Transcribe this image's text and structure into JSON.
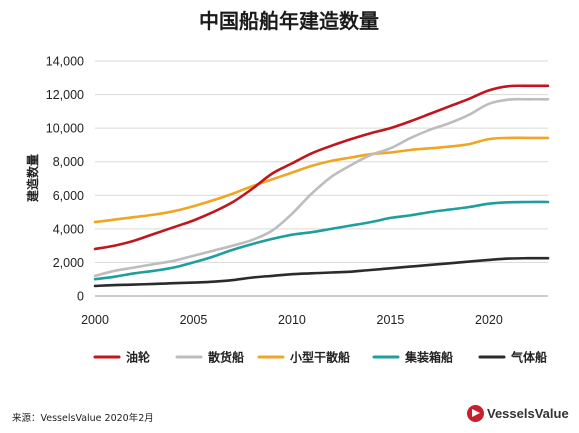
{
  "chart_data": {
    "type": "line",
    "title": "中国船舶年建造数量",
    "xlabel": "",
    "ylabel": "建造数量",
    "xlim": [
      2000,
      2023
    ],
    "ylim": [
      0,
      14000
    ],
    "xticks": [
      2000,
      2005,
      2010,
      2015,
      2020
    ],
    "yticks": [
      "0",
      "2,000",
      "4,000",
      "6,000",
      "8,000",
      "10,000",
      "12,000",
      "14,000"
    ],
    "ytick_values": [
      0,
      2000,
      4000,
      6000,
      8000,
      10000,
      12000,
      14000
    ],
    "grid": "horizontal",
    "legend_position": "bottom",
    "x": [
      2000,
      2001,
      2002,
      2003,
      2004,
      2005,
      2006,
      2007,
      2008,
      2009,
      2010,
      2011,
      2012,
      2013,
      2014,
      2015,
      2016,
      2017,
      2018,
      2019,
      2020,
      2021,
      2022,
      2023
    ],
    "series": [
      {
        "name": "油轮",
        "color": "#c0161f",
        "values": [
          2800,
          3000,
          3300,
          3700,
          4100,
          4500,
          5000,
          5600,
          6400,
          7300,
          7900,
          8500,
          8950,
          9350,
          9700,
          10000,
          10400,
          10850,
          11300,
          11750,
          12250,
          12500,
          12520,
          12520
        ]
      },
      {
        "name": "散货船",
        "color": "#bdbdbd",
        "values": [
          1200,
          1500,
          1700,
          1900,
          2100,
          2400,
          2700,
          3000,
          3350,
          3900,
          4900,
          6100,
          7100,
          7800,
          8400,
          8800,
          9400,
          9900,
          10300,
          10800,
          11450,
          11700,
          11720,
          11720
        ]
      },
      {
        "name": "小型干散船",
        "color": "#f0a623",
        "values": [
          4400,
          4550,
          4700,
          4850,
          5050,
          5350,
          5700,
          6100,
          6550,
          6950,
          7350,
          7750,
          8050,
          8250,
          8450,
          8550,
          8700,
          8800,
          8900,
          9050,
          9350,
          9420,
          9420,
          9420
        ]
      },
      {
        "name": "集装箱船",
        "color": "#1f9e9e",
        "values": [
          1000,
          1150,
          1350,
          1500,
          1700,
          2000,
          2350,
          2750,
          3100,
          3400,
          3650,
          3800,
          4000,
          4200,
          4400,
          4650,
          4800,
          5000,
          5150,
          5300,
          5500,
          5580,
          5600,
          5600
        ]
      },
      {
        "name": "气体船",
        "color": "#2b2b2b",
        "values": [
          600,
          650,
          680,
          720,
          760,
          800,
          850,
          950,
          1100,
          1200,
          1300,
          1350,
          1400,
          1450,
          1550,
          1650,
          1750,
          1850,
          1950,
          2050,
          2150,
          2230,
          2250,
          2250
        ]
      }
    ]
  },
  "footer": {
    "source": "来源：VesselsValue 2020年2月",
    "brand": "VesselsValue"
  }
}
